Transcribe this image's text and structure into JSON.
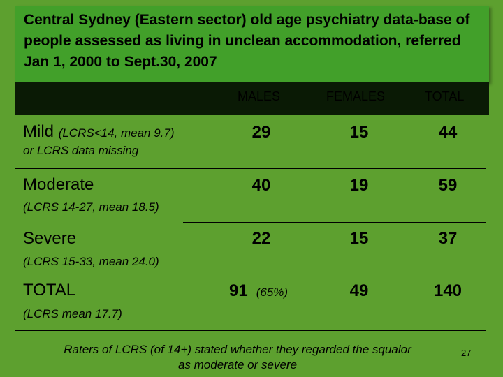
{
  "title": "Central Sydney (Eastern sector) old age psychiatry data-base of people assessed as living in unclean accommodation,  referred Jan 1, 2000 to Sept.30, 2007",
  "columns": {
    "males": "MALES",
    "females": "FEMALES",
    "total": "TOTAL"
  },
  "rows": [
    {
      "label": "Mild",
      "label_inline": "(LCRS<14, mean 9.7)",
      "sub": "or LCRS data missing",
      "males": "29",
      "females": "15",
      "total": "44"
    },
    {
      "label": "Moderate",
      "sub": "(LCRS 14-27,  mean 18.5)",
      "males": "40",
      "females": "19",
      "total": "59"
    },
    {
      "label": "Severe",
      "sub": "(LCRS 15-33, mean 24.0)",
      "males": "22",
      "females": "15",
      "total": "37"
    },
    {
      "label": "TOTAL",
      "sub": "(LCRS mean 17.7)",
      "males": "91",
      "males_pct": "(65%)",
      "females": "49",
      "total": "140"
    }
  ],
  "footnote": "Raters of LCRS (of 14+) stated whether they regarded the squalor as moderate or severe",
  "page_number": "27"
}
